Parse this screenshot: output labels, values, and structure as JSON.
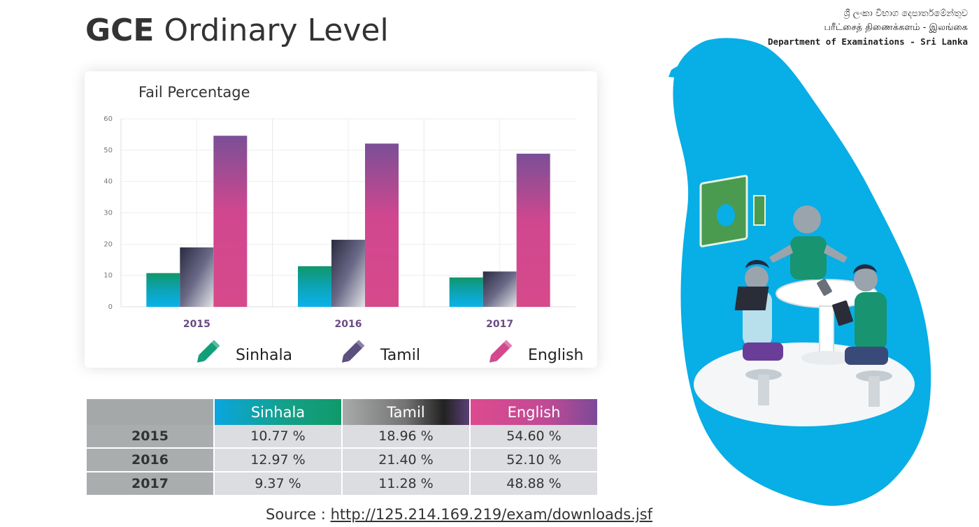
{
  "title": {
    "bold": "GCE",
    "rest": " Ordinary Level"
  },
  "department": {
    "line_sinhala": "ශ්‍රී ලංකා විභාග දෙපාර්තමේන්තුව",
    "line_tamil": "பரீட்சைத் திணைக்களம் - இலங்கை",
    "line_english": "Department of Examinations - Sri Lanka"
  },
  "chart_data": {
    "type": "bar",
    "title": "Fail Percentage",
    "categories": [
      "2015",
      "2016",
      "2017"
    ],
    "series": [
      {
        "name": "Sinhala",
        "values": [
          10.77,
          12.97,
          9.37
        ]
      },
      {
        "name": "Tamil",
        "values": [
          18.96,
          21.4,
          11.28
        ]
      },
      {
        "name": "English",
        "values": [
          54.6,
          52.1,
          48.88
        ]
      }
    ],
    "ylim": [
      0,
      60
    ],
    "yticks": [
      "0",
      "10",
      "20",
      "30",
      "40",
      "50",
      "60"
    ],
    "xlabel": "",
    "ylabel": "",
    "grid": true,
    "legend_position": "bottom",
    "colors": {
      "Sinhala": "#0fa07a",
      "Tamil": "#5b4f82",
      "English": "#d44b8e"
    }
  },
  "legend": {
    "items": [
      {
        "label": "Sinhala",
        "icon": "pencil-icon",
        "color": "#139e7a"
      },
      {
        "label": "Tamil",
        "icon": "pencil-icon",
        "color": "#5a4f7e"
      },
      {
        "label": "English",
        "icon": "pencil-icon",
        "color": "#d2498d"
      }
    ]
  },
  "table": {
    "headers": [
      "Sinhala",
      "Tamil",
      "English"
    ],
    "rows": [
      {
        "year": "2015",
        "values": [
          "10.77 %",
          "18.96 %",
          "54.60 %"
        ]
      },
      {
        "year": "2016",
        "values": [
          "12.97 %",
          "21.40 %",
          "52.10 %"
        ]
      },
      {
        "year": "2017",
        "values": [
          "9.37 %",
          "11.28 %",
          "48.88 %"
        ]
      }
    ]
  },
  "source": {
    "label": "Source : ",
    "url": "http://125.214.169.219/exam/downloads.jsf"
  },
  "illustration": {
    "name": "sri-lanka-map-with-students",
    "map_color": "#08aee6"
  }
}
